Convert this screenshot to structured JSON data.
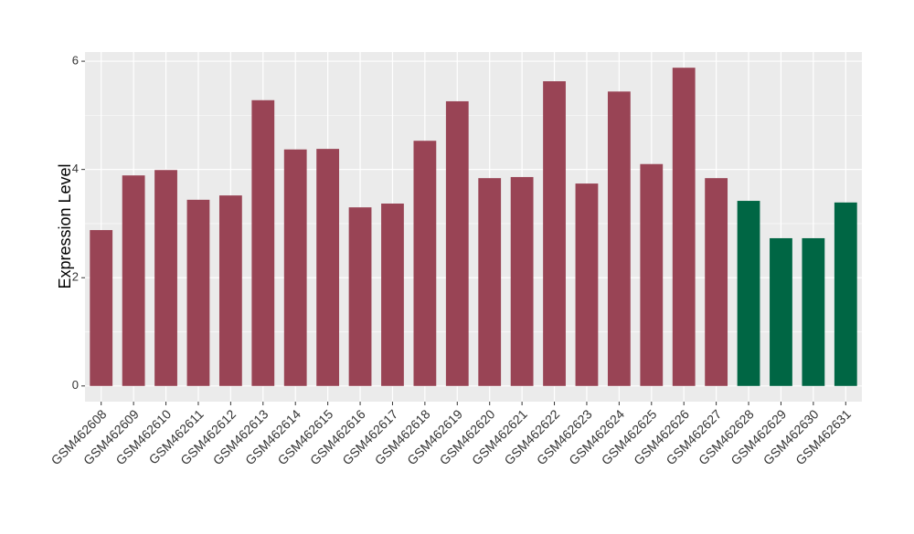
{
  "chart_data": {
    "type": "bar",
    "y_label": "Expression Level",
    "categories": [
      "GSM462608",
      "GSM462609",
      "GSM462610",
      "GSM462611",
      "GSM462612",
      "GSM462613",
      "GSM462614",
      "GSM462615",
      "GSM462616",
      "GSM462617",
      "GSM462618",
      "GSM462619",
      "GSM462620",
      "GSM462621",
      "GSM462622",
      "GSM462623",
      "GSM462624",
      "GSM462625",
      "GSM462626",
      "GSM462627",
      "GSM462628",
      "GSM462629",
      "GSM462630",
      "GSM462631"
    ],
    "values": [
      2.88,
      3.89,
      3.99,
      3.44,
      3.52,
      5.28,
      4.37,
      4.38,
      3.3,
      3.37,
      4.53,
      5.26,
      3.84,
      3.86,
      5.63,
      3.74,
      5.44,
      4.1,
      5.88,
      3.84,
      3.42,
      2.73,
      2.73,
      3.39
    ],
    "colors": [
      "#994455",
      "#994455",
      "#994455",
      "#994455",
      "#994455",
      "#994455",
      "#994455",
      "#994455",
      "#994455",
      "#994455",
      "#994455",
      "#994455",
      "#994455",
      "#994455",
      "#994455",
      "#994455",
      "#994455",
      "#994455",
      "#994455",
      "#994455",
      "#006644",
      "#006644",
      "#006644",
      "#006644"
    ],
    "ylim": [
      -0.29,
      6.17
    ],
    "yticks": [
      0,
      2,
      4,
      6
    ],
    "grid": true
  }
}
